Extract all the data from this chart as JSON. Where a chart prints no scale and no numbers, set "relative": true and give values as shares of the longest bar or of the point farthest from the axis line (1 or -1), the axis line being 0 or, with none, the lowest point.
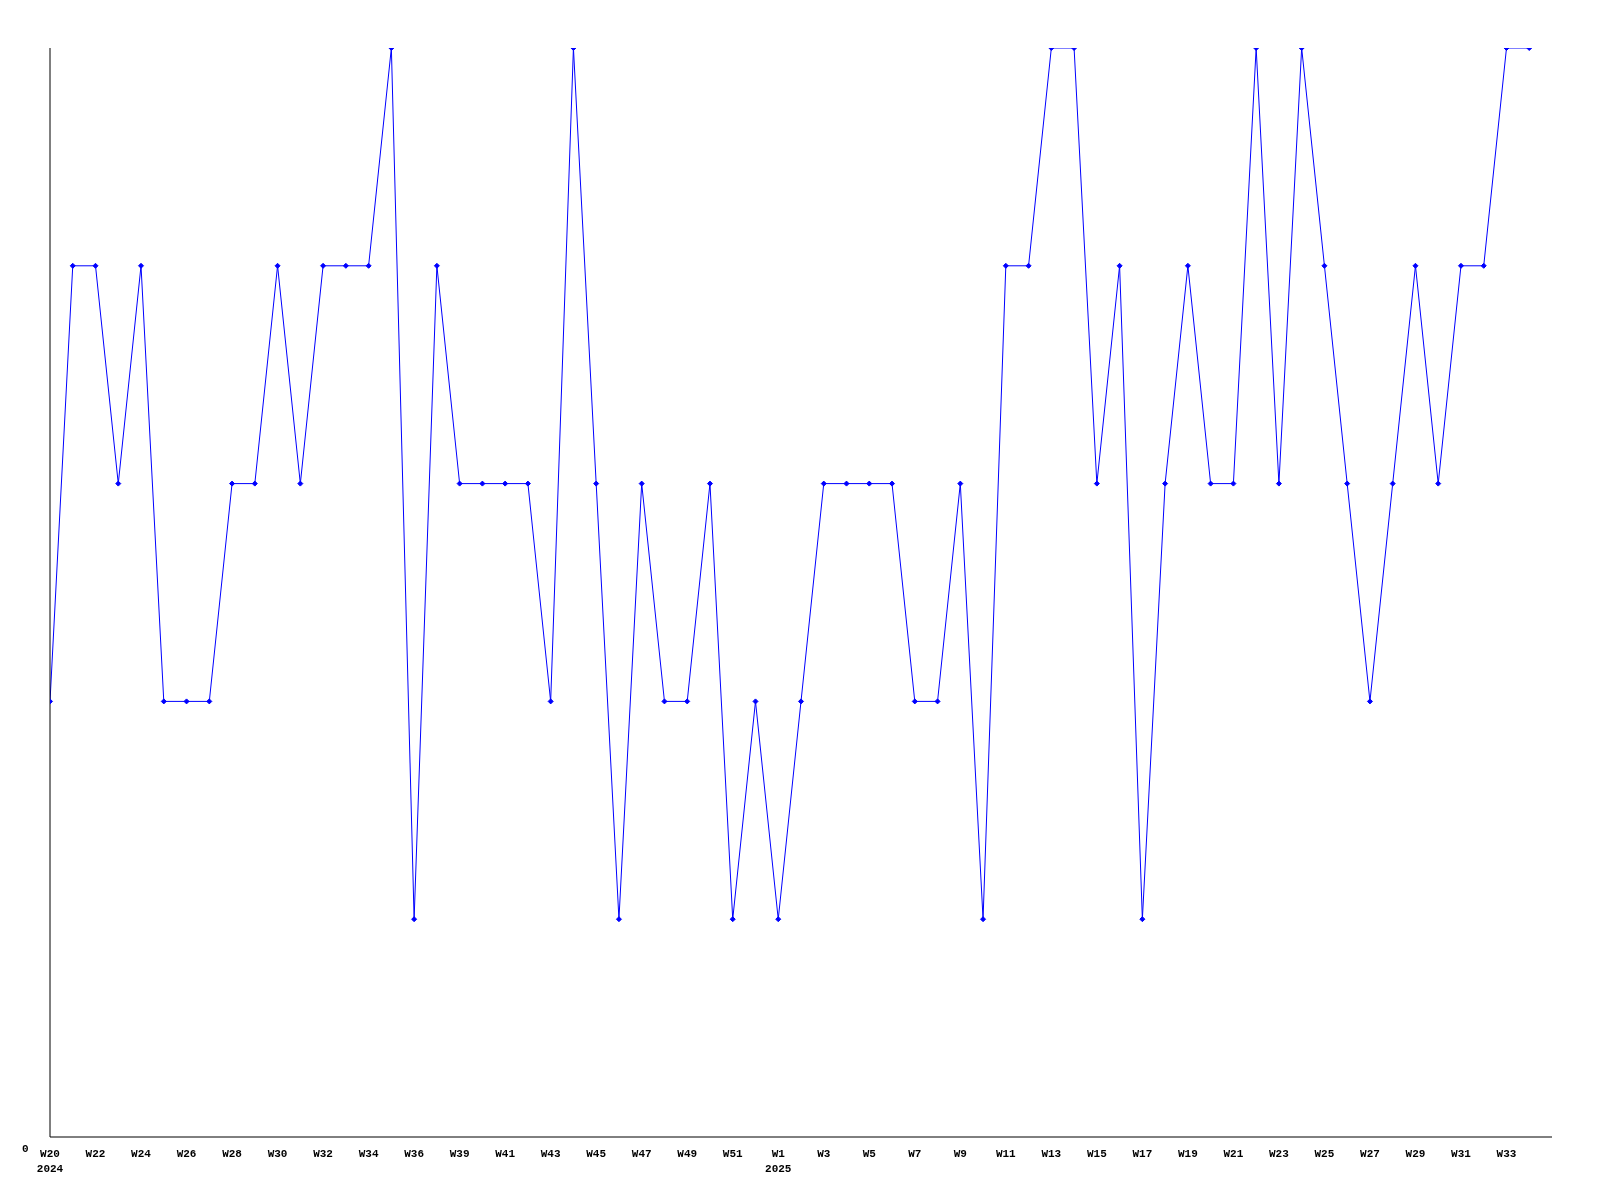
{
  "chart_data": {
    "type": "line",
    "relative": true,
    "annotations": [
      "0"
    ],
    "marker": "diamond",
    "line_style": "solid",
    "grid": false,
    "legend": false,
    "categories": [
      "W20\n2024",
      null,
      "W22",
      null,
      "W24",
      null,
      "W26",
      null,
      "W28",
      null,
      "W30",
      null,
      "W32",
      null,
      "W34",
      null,
      "W36",
      null,
      "W39",
      null,
      "W41",
      null,
      "W43",
      null,
      "W45",
      null,
      "W47",
      null,
      "W49",
      null,
      "W51",
      null,
      "W1\n2025",
      null,
      "W3",
      null,
      "W5",
      null,
      "W7",
      null,
      "W9",
      null,
      "W11",
      null,
      "W13",
      null,
      "W15",
      null,
      "W17",
      null,
      "W19",
      null,
      "W21",
      null,
      "W23",
      null,
      "W25",
      null,
      "W27",
      null,
      "W29",
      null,
      "W31",
      null,
      "W33",
      null
    ],
    "series": [
      {
        "color": "#0000ff",
        "values": [
          0.4,
          0.8,
          0.8,
          0.6,
          0.8,
          0.4,
          0.4,
          0.4,
          0.6,
          0.6,
          0.8,
          0.6,
          0.8,
          0.8,
          0.8,
          1,
          0.2,
          0.8,
          0.6,
          0.6,
          0.6,
          0.6,
          0.4,
          1,
          0.6,
          0.2,
          0.6,
          0.4,
          0.4,
          0.6,
          0.2,
          0.4,
          0.2,
          0.4,
          0.6,
          0.6,
          0.6,
          0.6,
          0.4,
          0.4,
          0.6,
          0.2,
          0.8,
          0.8,
          1,
          1,
          0.6,
          0.8,
          0.2,
          0.6,
          0.8,
          0.6,
          0.6,
          1,
          0.6,
          1,
          0.8,
          0.6,
          0.4,
          0.6,
          0.8,
          0.6,
          0.8,
          0.8,
          1,
          1
        ]
      }
    ]
  }
}
